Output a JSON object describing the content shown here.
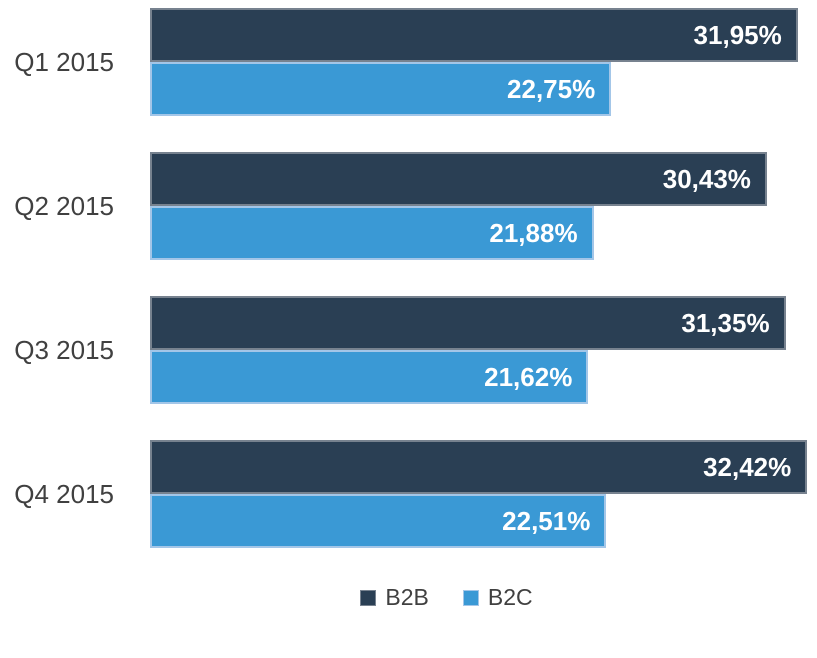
{
  "chart_data": {
    "type": "bar",
    "orientation": "horizontal",
    "title": "",
    "xlabel": "",
    "ylabel": "",
    "grid": false,
    "legend_position": "bottom",
    "xlim": [
      0,
      32.9
    ],
    "categories": [
      "Q1 2015",
      "Q2 2015",
      "Q3 2015",
      "Q4 2015"
    ],
    "series": [
      {
        "name": "B2B",
        "color": "#2A3F54",
        "border_color": "#77828F",
        "values": [
          31.95,
          30.43,
          31.35,
          32.42
        ],
        "labels": [
          "31,95%",
          "30,43%",
          "31,35%",
          "32,42%"
        ]
      },
      {
        "name": "B2C",
        "color": "#3A99D5",
        "border_color": "#A3C6E8",
        "values": [
          22.75,
          21.88,
          21.62,
          22.51
        ],
        "labels": [
          "22,75%",
          "21,88%",
          "21,62%",
          "22,51%"
        ]
      }
    ],
    "value_label_color": "#FFFFFF",
    "category_label_color": "#404040"
  },
  "legend": {
    "items": [
      {
        "label": "B2B",
        "color": "#2A3F54",
        "border_color": "#77828F"
      },
      {
        "label": "B2C",
        "color": "#3A99D5",
        "border_color": "#A3C6E8"
      }
    ]
  }
}
